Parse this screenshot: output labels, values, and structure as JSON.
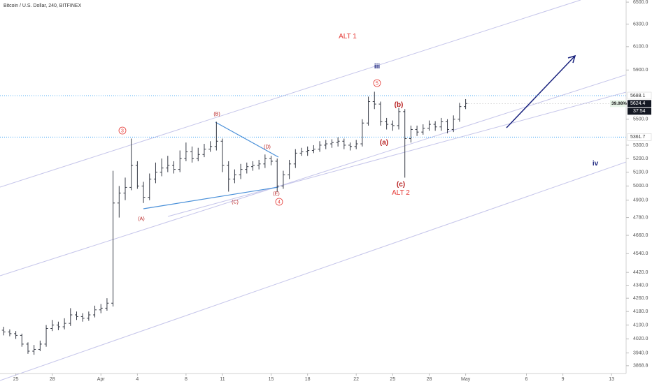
{
  "chart_data": {
    "type": "ohlc",
    "title": "Bitcoin / U.S. Dollar, 240, BITFINEX",
    "color": "#363a45",
    "log_scale": true,
    "grid": false,
    "x": [
      -1,
      -0.5,
      0,
      0.5,
      1,
      1.5,
      2,
      2.5,
      3,
      3.5,
      4,
      4.5,
      5,
      5.5,
      6,
      6.5,
      7,
      7.5,
      8,
      8.5,
      9,
      9.5,
      10,
      10.5,
      11,
      11.5,
      12,
      12.5,
      13,
      13.5,
      14,
      14.5,
      15,
      15.5,
      16,
      16.5,
      17,
      17.5,
      18,
      18.5,
      19,
      19.5,
      20,
      20.5,
      21,
      21.5,
      22,
      22.5,
      23,
      23.5,
      24,
      24.5,
      25,
      25.5,
      26,
      26.5,
      27,
      27.5,
      28,
      28.5,
      29,
      29.5,
      30,
      30.5,
      31,
      31.5,
      32,
      32.5,
      33,
      33.5,
      34,
      34.5,
      35,
      35.5,
      36,
      36.5,
      37
    ],
    "open": [
      4070,
      4060,
      4050,
      4040,
      3990,
      3950,
      3960,
      3990,
      4080,
      4100,
      4090,
      4110,
      4160,
      4150,
      4140,
      4160,
      4190,
      4200,
      4230,
      4880,
      4950,
      4990,
      5150,
      5000,
      4920,
      5050,
      5100,
      5130,
      5150,
      5120,
      5200,
      5250,
      5200,
      5230,
      5270,
      5290,
      5330,
      5150,
      5050,
      5080,
      5120,
      5140,
      5150,
      5160,
      5200,
      5180,
      5000,
      5080,
      5160,
      5240,
      5250,
      5260,
      5270,
      5300,
      5310,
      5320,
      5330,
      5300,
      5290,
      5310,
      5470,
      5640,
      5620,
      5480,
      5460,
      5450,
      5560,
      5350,
      5420,
      5400,
      5430,
      5460,
      5440,
      5480,
      5420,
      5500,
      5600
    ],
    "high": [
      4090,
      4075,
      4065,
      4050,
      4000,
      3985,
      4010,
      4100,
      4130,
      4120,
      4140,
      4200,
      4180,
      4170,
      4180,
      4215,
      4225,
      4260,
      5110,
      5000,
      5060,
      5350,
      5180,
      5030,
      5090,
      5170,
      5200,
      5220,
      5180,
      5260,
      5320,
      5290,
      5280,
      5310,
      5330,
      5480,
      5350,
      5180,
      5120,
      5160,
      5170,
      5180,
      5190,
      5230,
      5220,
      5200,
      5110,
      5190,
      5270,
      5280,
      5290,
      5300,
      5330,
      5340,
      5345,
      5360,
      5350,
      5320,
      5340,
      5500,
      5680,
      5720,
      5640,
      5510,
      5490,
      5590,
      5580,
      5450,
      5450,
      5460,
      5490,
      5485,
      5510,
      5500,
      5530,
      5630,
      5660
    ],
    "low": [
      4040,
      4035,
      4020,
      3975,
      3935,
      3930,
      3950,
      3975,
      4065,
      4070,
      4075,
      4095,
      4130,
      4120,
      4125,
      4145,
      4170,
      4185,
      4210,
      4780,
      4900,
      4970,
      4980,
      4880,
      4900,
      5020,
      5070,
      5100,
      5090,
      5100,
      5180,
      5170,
      5180,
      5210,
      5250,
      5260,
      5100,
      4960,
      5020,
      5050,
      5090,
      5110,
      5120,
      5130,
      5150,
      4960,
      4980,
      5050,
      5130,
      5220,
      5220,
      5240,
      5250,
      5270,
      5280,
      5290,
      5270,
      5260,
      5270,
      5290,
      5450,
      5580,
      5450,
      5420,
      5410,
      5420,
      5060,
      5320,
      5370,
      5380,
      5410,
      5410,
      5410,
      5390,
      5400,
      5480,
      5580
    ],
    "close": [
      4060,
      4050,
      4040,
      3990,
      3950,
      3960,
      3990,
      4080,
      4100,
      4090,
      4110,
      4160,
      4150,
      4140,
      4160,
      4190,
      4200,
      4230,
      4880,
      4950,
      4990,
      5150,
      5000,
      4920,
      5050,
      5100,
      5130,
      5150,
      5120,
      5200,
      5250,
      5200,
      5230,
      5270,
      5290,
      5330,
      5150,
      5050,
      5080,
      5120,
      5140,
      5150,
      5160,
      5200,
      5180,
      5000,
      5080,
      5160,
      5240,
      5250,
      5260,
      5270,
      5300,
      5310,
      5320,
      5330,
      5300,
      5290,
      5310,
      5470,
      5640,
      5620,
      5480,
      5460,
      5450,
      5560,
      5350,
      5420,
      5400,
      5430,
      5460,
      5440,
      5480,
      5420,
      5500,
      5600,
      5624.4
    ],
    "xlim": [
      -1.3,
      50.2
    ],
    "xticks": [
      {
        "value": 0,
        "label": "25"
      },
      {
        "value": 3,
        "label": "28"
      },
      {
        "value": 7,
        "label": "Apr"
      },
      {
        "value": 10,
        "label": "4"
      },
      {
        "value": 14,
        "label": "8"
      },
      {
        "value": 17,
        "label": "11"
      },
      {
        "value": 21,
        "label": "15"
      },
      {
        "value": 24,
        "label": "18"
      },
      {
        "value": 28,
        "label": "22"
      },
      {
        "value": 31,
        "label": "25"
      },
      {
        "value": 34,
        "label": "28"
      },
      {
        "value": 37,
        "label": "May"
      },
      {
        "value": 42,
        "label": "6"
      },
      {
        "value": 45,
        "label": "9"
      },
      {
        "value": 49,
        "label": "13"
      }
    ],
    "ylim": [
      3826,
      6520
    ],
    "yticks": [
      {
        "value": 6500,
        "label": "6500.0"
      },
      {
        "value": 6300,
        "label": "6300.0"
      },
      {
        "value": 6100,
        "label": "6100.0"
      },
      {
        "value": 5900,
        "label": "5900.0"
      },
      {
        "value": 5500,
        "label": "5500.0"
      },
      {
        "value": 5300,
        "label": "5300.0"
      },
      {
        "value": 5200,
        "label": "5200.0"
      },
      {
        "value": 5100,
        "label": "5100.0"
      },
      {
        "value": 5000,
        "label": "5000.0"
      },
      {
        "value": 4900,
        "label": "4900.0"
      },
      {
        "value": 4780,
        "label": "4780.0"
      },
      {
        "value": 4660,
        "label": "4660.0"
      },
      {
        "value": 4540,
        "label": "4540.0"
      },
      {
        "value": 4420,
        "label": "4420.0"
      },
      {
        "value": 4340,
        "label": "4340.0"
      },
      {
        "value": 4260,
        "label": "4260.0"
      },
      {
        "value": 4180,
        "label": "4180.0"
      },
      {
        "value": 4100,
        "label": "4100.0"
      },
      {
        "value": 4020,
        "label": "4020.0"
      },
      {
        "value": 3940,
        "label": "3940.0"
      },
      {
        "value": 3868.8,
        "label": "3868.8"
      }
    ],
    "levels": [
      {
        "value": 5688.1,
        "label": "5688.1",
        "color": "#2196f3"
      },
      {
        "value": 5361.7,
        "label": "5361.7",
        "color": "#2196f3"
      }
    ],
    "last_price": {
      "value": 5624.4,
      "label": "5624.4",
      "change": "39.08%",
      "countdown": "37:54"
    },
    "annotations": [
      {
        "text": "ALT 1",
        "color": "#e53935"
      },
      {
        "text": "iii",
        "color": "#1a237e"
      },
      {
        "text": "5",
        "color": "#e53935",
        "circled": true
      },
      {
        "text": "(b)",
        "color": "#b71c1c"
      },
      {
        "text": "(a)",
        "color": "#b71c1c"
      },
      {
        "text": "(c)",
        "color": "#b71c1c"
      },
      {
        "text": "ALT 2",
        "color": "#e53935"
      },
      {
        "text": "3",
        "color": "#e53935",
        "circled": true
      },
      {
        "text": "(B)",
        "color": "#b71c1c"
      },
      {
        "text": "(D)",
        "color": "#b71c1c"
      },
      {
        "text": "(A)",
        "color": "#b71c1c"
      },
      {
        "text": "(C)",
        "color": "#b71c1c"
      },
      {
        "text": "(E)",
        "color": "#b71c1c"
      },
      {
        "text": "4",
        "color": "#e53935",
        "circled": true
      },
      {
        "text": "iv",
        "color": "#1a237e"
      }
    ]
  }
}
